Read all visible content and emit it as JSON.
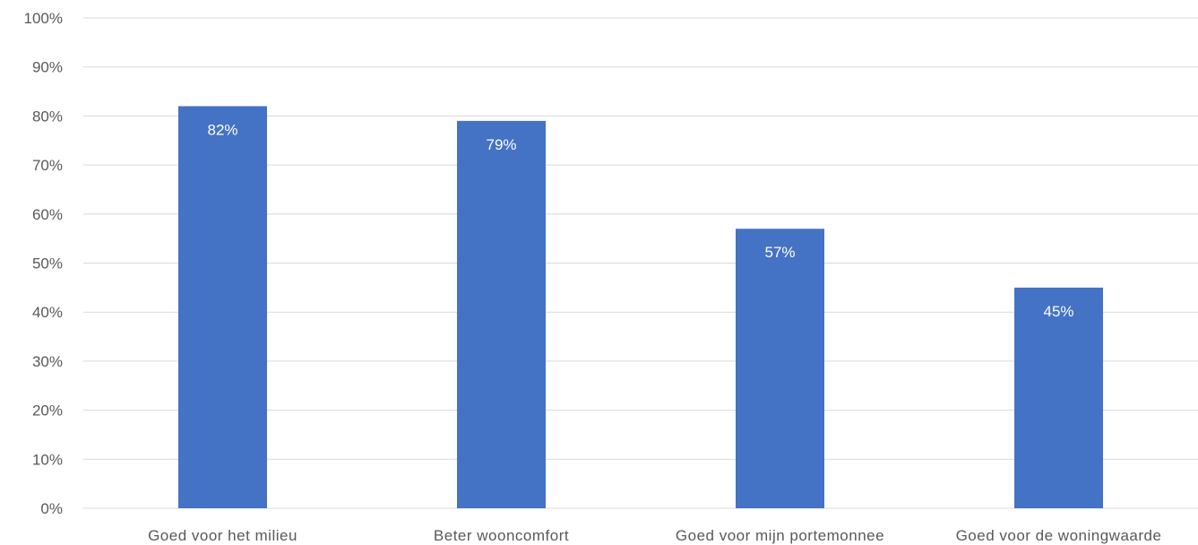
{
  "chart_data": {
    "type": "bar",
    "title": "",
    "xlabel": "",
    "ylabel": "",
    "categories": [
      "Goed voor het milieu",
      "Beter wooncomfort",
      "Goed voor mijn portemonnee",
      "Goed voor de woningwaarde"
    ],
    "values": [
      82,
      79,
      57,
      45
    ],
    "data_labels": [
      "82%",
      "79%",
      "57%",
      "45%"
    ],
    "ylim": [
      0,
      100
    ],
    "yticks": [
      0,
      10,
      20,
      30,
      40,
      50,
      60,
      70,
      80,
      90,
      100
    ],
    "ytick_labels": [
      "0%",
      "10%",
      "20%",
      "30%",
      "40%",
      "50%",
      "60%",
      "70%",
      "80%",
      "90%",
      "100%"
    ],
    "grid": true,
    "legend": "none",
    "bar_color": "#4472c4",
    "gridline_color": "#d9d9d9",
    "label_color": "#595959",
    "data_label_color": "#ffffff"
  }
}
